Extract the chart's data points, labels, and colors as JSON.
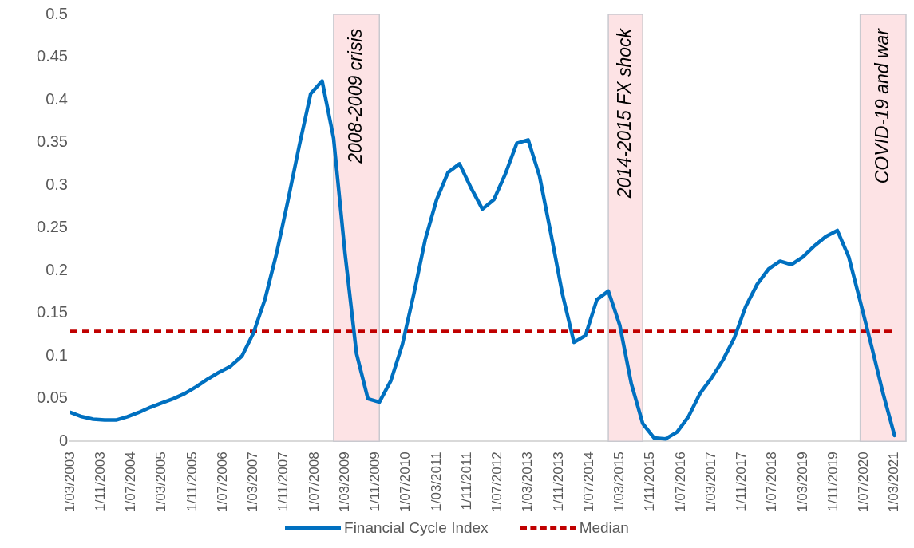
{
  "chart_data": {
    "type": "line",
    "marker": "none",
    "legend": "bottom",
    "x": [
      "2003-03",
      "2003-06",
      "2003-09",
      "2003-12",
      "2004-03",
      "2004-06",
      "2004-09",
      "2004-12",
      "2005-03",
      "2005-06",
      "2005-09",
      "2005-12",
      "2006-03",
      "2006-06",
      "2006-09",
      "2006-12",
      "2007-03",
      "2007-06",
      "2007-09",
      "2007-12",
      "2008-03",
      "2008-06",
      "2008-09",
      "2008-12",
      "2009-03",
      "2009-06",
      "2009-09",
      "2009-12",
      "2010-03",
      "2010-06",
      "2010-09",
      "2010-12",
      "2011-03",
      "2011-06",
      "2011-09",
      "2011-12",
      "2012-03",
      "2012-06",
      "2012-09",
      "2012-12",
      "2013-03",
      "2013-06",
      "2013-09",
      "2013-12",
      "2014-03",
      "2014-06",
      "2014-09",
      "2014-12",
      "2015-03",
      "2015-06",
      "2015-09",
      "2015-12",
      "2016-03",
      "2016-06",
      "2016-09",
      "2016-12",
      "2017-03",
      "2017-06",
      "2017-09",
      "2017-12",
      "2018-03",
      "2018-06",
      "2018-09",
      "2018-12",
      "2019-03",
      "2019-06",
      "2019-09",
      "2019-12",
      "2020-03",
      "2020-06",
      "2020-09",
      "2020-12",
      "2021-03"
    ],
    "series": [
      {
        "name": "Financial Cycle Index",
        "color": "#0070c0",
        "line_style": "solid",
        "values": [
          0.034,
          0.029,
          0.026,
          0.025,
          0.025,
          0.029,
          0.034,
          0.04,
          0.045,
          0.05,
          0.056,
          0.064,
          0.073,
          0.081,
          0.088,
          0.1,
          0.127,
          0.166,
          0.219,
          0.281,
          0.346,
          0.407,
          0.422,
          0.355,
          0.22,
          0.103,
          0.05,
          0.046,
          0.071,
          0.113,
          0.172,
          0.236,
          0.283,
          0.315,
          0.325,
          0.297,
          0.272,
          0.283,
          0.313,
          0.349,
          0.353,
          0.31,
          0.242,
          0.172,
          0.116,
          0.124,
          0.166,
          0.176,
          0.136,
          0.068,
          0.021,
          0.004,
          0.003,
          0.011,
          0.029,
          0.056,
          0.074,
          0.095,
          0.121,
          0.158,
          0.184,
          0.202,
          0.211,
          0.207,
          0.216,
          0.229,
          0.24,
          0.247,
          0.216,
          0.164,
          0.111,
          0.056,
          0.007
        ]
      }
    ],
    "ref_lines": [
      {
        "axis": "y",
        "value": 0.129,
        "label": "Median",
        "color": "#c00000",
        "line_style": "dashed"
      }
    ],
    "bands": [
      {
        "axis": "x",
        "from": "2008-12",
        "to": "2009-12",
        "label": "2008-2009 crisis",
        "color": "#fde3e5"
      },
      {
        "axis": "x",
        "from": "2014-12",
        "to": "2015-09",
        "label": "2014-2015 FX shock",
        "color": "#fde3e5"
      },
      {
        "axis": "x",
        "from": "2020-06",
        "to": "2021-06",
        "label": "COVID-19 and war",
        "color": "#fde3e5"
      }
    ],
    "xlim": [
      "2003-03",
      "2021-06"
    ],
    "xticks": [
      {
        "value": "2003-03",
        "label": "1/03/2003"
      },
      {
        "value": "2003-11",
        "label": "1/11/2003"
      },
      {
        "value": "2004-07",
        "label": "1/07/2004"
      },
      {
        "value": "2005-03",
        "label": "1/03/2005"
      },
      {
        "value": "2005-11",
        "label": "1/11/2005"
      },
      {
        "value": "2006-07",
        "label": "1/07/2006"
      },
      {
        "value": "2007-03",
        "label": "1/03/2007"
      },
      {
        "value": "2007-11",
        "label": "1/11/2007"
      },
      {
        "value": "2008-07",
        "label": "1/07/2008"
      },
      {
        "value": "2009-03",
        "label": "1/03/2009"
      },
      {
        "value": "2009-11",
        "label": "1/11/2009"
      },
      {
        "value": "2010-07",
        "label": "1/07/2010"
      },
      {
        "value": "2011-03",
        "label": "1/03/2011"
      },
      {
        "value": "2011-11",
        "label": "1/11/2011"
      },
      {
        "value": "2012-07",
        "label": "1/07/2012"
      },
      {
        "value": "2013-03",
        "label": "1/03/2013"
      },
      {
        "value": "2013-11",
        "label": "1/11/2013"
      },
      {
        "value": "2014-07",
        "label": "1/07/2014"
      },
      {
        "value": "2015-03",
        "label": "1/03/2015"
      },
      {
        "value": "2015-11",
        "label": "1/11/2015"
      },
      {
        "value": "2016-07",
        "label": "1/07/2016"
      },
      {
        "value": "2017-03",
        "label": "1/03/2017"
      },
      {
        "value": "2017-11",
        "label": "1/11/2017"
      },
      {
        "value": "2018-07",
        "label": "1/07/2018"
      },
      {
        "value": "2019-03",
        "label": "1/03/2019"
      },
      {
        "value": "2019-11",
        "label": "1/11/2019"
      },
      {
        "value": "2020-07",
        "label": "1/07/2020"
      },
      {
        "value": "2021-03",
        "label": "1/03/2021"
      }
    ],
    "ylim": [
      0,
      0.5
    ],
    "yticks": [
      0,
      0.05,
      0.1,
      0.15,
      0.2,
      0.25,
      0.3,
      0.35,
      0.4,
      0.45,
      0.5
    ]
  }
}
